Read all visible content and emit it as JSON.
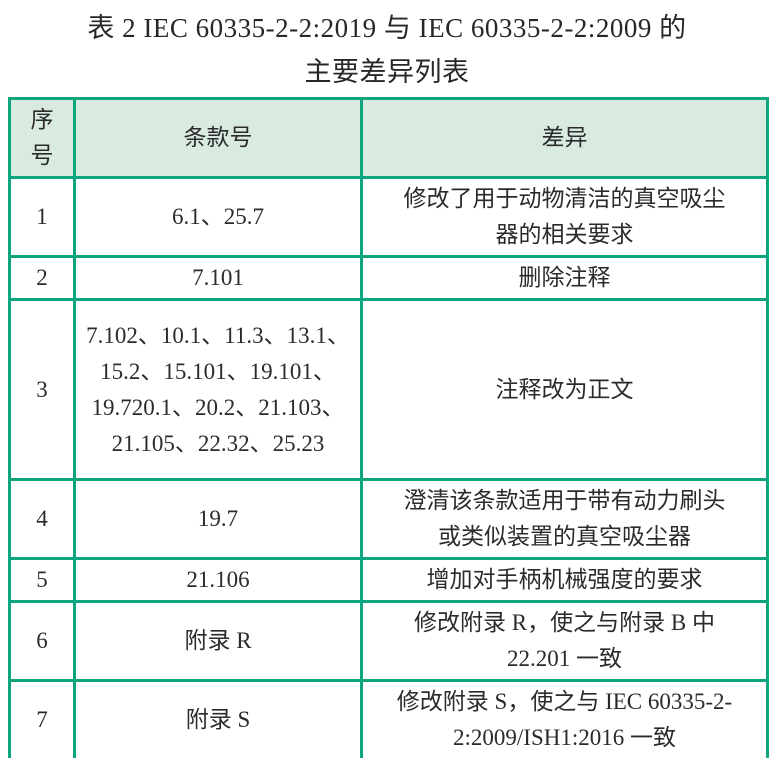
{
  "title": {
    "line1": "表 2 IEC 60335-2-2:2019 与 IEC 60335-2-2:2009 的",
    "line2": "主要差异列表"
  },
  "table": {
    "headers": [
      "序号",
      "条款号",
      "差异"
    ],
    "rows": [
      {
        "no": "1",
        "clause": "6.1、25.7",
        "diff": "修改了用于动物清洁的真空吸尘器的相关要求"
      },
      {
        "no": "2",
        "clause": "7.101",
        "diff": "删除注释"
      },
      {
        "no": "3",
        "clause": "7.102、10.1、11.3、13.1、15.2、15.101、19.101、19.720.1、20.2、21.103、21.105、22.32、25.23",
        "diff": "注释改为正文"
      },
      {
        "no": "4",
        "clause": "19.7",
        "diff": "澄清该条款适用于带有动力刷头或类似装置的真空吸尘器"
      },
      {
        "no": "5",
        "clause": "21.106",
        "diff": "增加对手柄机械强度的要求"
      },
      {
        "no": "6",
        "clause": "附录 R",
        "diff": "修改附录 R，使之与附录 B 中 22.201 一致"
      },
      {
        "no": "7",
        "clause": "附录 S",
        "diff": "修改附录 S，使之与 IEC 60335-2-2:2009/ISH1:2016 一致"
      }
    ]
  },
  "colors": {
    "border": "#0ca57d",
    "header_bg": "#d9ebe1",
    "text": "#2b2b2b",
    "background": "#ffffff"
  }
}
